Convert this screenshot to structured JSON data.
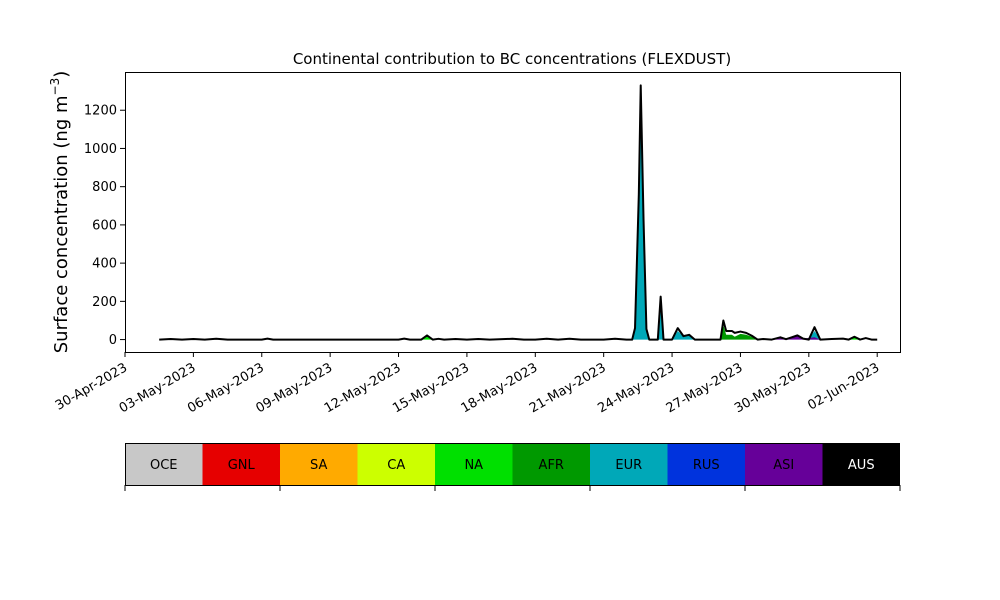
{
  "chart_data": {
    "type": "area",
    "title": "Continental contribution to BC concentrations (FLEXDUST)",
    "xlabel": "",
    "ylabel": "Surface concentration (ng m",
    "ylabel_sup": "−3",
    "ylabel_close": ")",
    "xlim": [
      "2023-04-30",
      "2023-06-03"
    ],
    "ylim": [
      -65,
      1400
    ],
    "y_ticks": [
      0,
      200,
      400,
      600,
      800,
      1000,
      1200
    ],
    "x_ticks": [
      {
        "date": "2023-04-30",
        "label": "30-Apr-2023"
      },
      {
        "date": "2023-05-03",
        "label": "03-May-2023"
      },
      {
        "date": "2023-05-06",
        "label": "06-May-2023"
      },
      {
        "date": "2023-05-09",
        "label": "09-May-2023"
      },
      {
        "date": "2023-05-12",
        "label": "12-May-2023"
      },
      {
        "date": "2023-05-15",
        "label": "15-May-2023"
      },
      {
        "date": "2023-05-18",
        "label": "18-May-2023"
      },
      {
        "date": "2023-05-21",
        "label": "21-May-2023"
      },
      {
        "date": "2023-05-24",
        "label": "24-May-2023"
      },
      {
        "date": "2023-05-27",
        "label": "27-May-2023"
      },
      {
        "date": "2023-05-30",
        "label": "30-May-2023"
      },
      {
        "date": "2023-06-02",
        "label": "02-Jun-2023"
      }
    ],
    "grid": false,
    "legend_position": "below",
    "legend": [
      {
        "name": "OCE",
        "color": "#c8c8c8",
        "text_color": "#000000"
      },
      {
        "name": "GNL",
        "color": "#e60000",
        "text_color": "#000000"
      },
      {
        "name": "SA",
        "color": "#ffaa00",
        "text_color": "#000000"
      },
      {
        "name": "CA",
        "color": "#ccff00",
        "text_color": "#000000"
      },
      {
        "name": "NA",
        "color": "#00e000",
        "text_color": "#000000"
      },
      {
        "name": "AFR",
        "color": "#009900",
        "text_color": "#000000"
      },
      {
        "name": "EUR",
        "color": "#00a8b8",
        "text_color": "#000000"
      },
      {
        "name": "RUS",
        "color": "#0033dd",
        "text_color": "#000000"
      },
      {
        "name": "ASI",
        "color": "#660099",
        "text_color": "#000000"
      },
      {
        "name": "AUS",
        "color": "#000000",
        "text_color": "#ffffff"
      }
    ],
    "series": [
      {
        "name": "EUR",
        "color": "#00a8b8",
        "points": [
          [
            "2023-05-01",
            0
          ],
          [
            "2023-05-22 06:00",
            0
          ],
          [
            "2023-05-22 09:00",
            60
          ],
          [
            "2023-05-22 13:00",
            750
          ],
          [
            "2023-05-22 15:00",
            1290
          ],
          [
            "2023-05-22 18:00",
            600
          ],
          [
            "2023-05-22 21:00",
            50
          ],
          [
            "2023-05-23 00:00",
            0
          ],
          [
            "2023-05-23 09:00",
            0
          ],
          [
            "2023-05-23 12:00",
            200
          ],
          [
            "2023-05-23 15:00",
            0
          ],
          [
            "2023-05-24 00:00",
            0
          ],
          [
            "2023-05-24 06:00",
            45
          ],
          [
            "2023-05-24 12:00",
            15
          ],
          [
            "2023-05-24 18:00",
            20
          ],
          [
            "2023-05-25 00:00",
            0
          ],
          [
            "2023-05-30 00:00",
            0
          ],
          [
            "2023-05-30 06:00",
            45
          ],
          [
            "2023-05-30 12:00",
            0
          ],
          [
            "2023-06-02",
            0
          ]
        ]
      },
      {
        "name": "AFR",
        "color": "#009900",
        "points": [
          [
            "2023-05-01",
            0
          ],
          [
            "2023-05-26 03:00",
            0
          ],
          [
            "2023-05-26 06:00",
            75
          ],
          [
            "2023-05-26 09:00",
            25
          ],
          [
            "2023-05-26 15:00",
            25
          ],
          [
            "2023-05-26 18:00",
            15
          ],
          [
            "2023-05-27 00:00",
            30
          ],
          [
            "2023-05-27 06:00",
            25
          ],
          [
            "2023-05-27 12:00",
            15
          ],
          [
            "2023-05-27 18:00",
            0
          ],
          [
            "2023-06-02",
            0
          ]
        ]
      },
      {
        "name": "ASI",
        "color": "#660099",
        "points": [
          [
            "2023-05-01",
            0
          ],
          [
            "2023-05-28 09:00",
            0
          ],
          [
            "2023-05-28 18:00",
            8
          ],
          [
            "2023-05-29 00:00",
            0
          ],
          [
            "2023-05-29 06:00",
            12
          ],
          [
            "2023-05-29 12:00",
            20
          ],
          [
            "2023-05-29 18:00",
            5
          ],
          [
            "2023-05-30 06:00",
            12
          ],
          [
            "2023-05-30 12:00",
            0
          ],
          [
            "2023-06-02",
            0
          ]
        ]
      },
      {
        "name": "NA",
        "color": "#00e000",
        "points": [
          [
            "2023-05-01",
            0
          ],
          [
            "2023-05-13 00:00",
            0
          ],
          [
            "2023-05-13 06:00",
            20
          ],
          [
            "2023-05-13 12:00",
            0
          ],
          [
            "2023-05-31 18:00",
            0
          ],
          [
            "2023-06-01 00:00",
            12
          ],
          [
            "2023-06-01 06:00",
            0
          ],
          [
            "2023-06-02",
            0
          ]
        ]
      }
    ],
    "total": [
      [
        "2023-05-01 12:00",
        0
      ],
      [
        "2023-05-02 00:00",
        3
      ],
      [
        "2023-05-02 12:00",
        0
      ],
      [
        "2023-05-03 00:00",
        3
      ],
      [
        "2023-05-03 12:00",
        0
      ],
      [
        "2023-05-04 00:00",
        4
      ],
      [
        "2023-05-04 12:00",
        0
      ],
      [
        "2023-05-06 00:00",
        0
      ],
      [
        "2023-05-06 06:00",
        5
      ],
      [
        "2023-05-06 12:00",
        0
      ],
      [
        "2023-05-12 00:00",
        0
      ],
      [
        "2023-05-12 06:00",
        5
      ],
      [
        "2023-05-12 12:00",
        0
      ],
      [
        "2023-05-13 00:00",
        0
      ],
      [
        "2023-05-13 06:00",
        22
      ],
      [
        "2023-05-13 12:00",
        0
      ],
      [
        "2023-05-13 18:00",
        4
      ],
      [
        "2023-05-14 00:00",
        0
      ],
      [
        "2023-05-14 12:00",
        3
      ],
      [
        "2023-05-15 00:00",
        0
      ],
      [
        "2023-05-15 12:00",
        3
      ],
      [
        "2023-05-16 00:00",
        0
      ],
      [
        "2023-05-17 00:00",
        4
      ],
      [
        "2023-05-17 12:00",
        0
      ],
      [
        "2023-05-18 00:00",
        0
      ],
      [
        "2023-05-18 12:00",
        4
      ],
      [
        "2023-05-19 00:00",
        0
      ],
      [
        "2023-05-19 12:00",
        4
      ],
      [
        "2023-05-20 00:00",
        0
      ],
      [
        "2023-05-21 00:00",
        0
      ],
      [
        "2023-05-21 12:00",
        4
      ],
      [
        "2023-05-22 00:00",
        0
      ],
      [
        "2023-05-22 06:00",
        0
      ],
      [
        "2023-05-22 09:00",
        60
      ],
      [
        "2023-05-22 13:00",
        760
      ],
      [
        "2023-05-22 15:00",
        1330
      ],
      [
        "2023-05-22 18:00",
        620
      ],
      [
        "2023-05-22 21:00",
        55
      ],
      [
        "2023-05-23 00:00",
        0
      ],
      [
        "2023-05-23 09:00",
        0
      ],
      [
        "2023-05-23 12:00",
        225
      ],
      [
        "2023-05-23 15:00",
        0
      ],
      [
        "2023-05-24 00:00",
        0
      ],
      [
        "2023-05-24 06:00",
        60
      ],
      [
        "2023-05-24 12:00",
        18
      ],
      [
        "2023-05-24 18:00",
        25
      ],
      [
        "2023-05-25 00:00",
        0
      ],
      [
        "2023-05-25 12:00",
        0
      ],
      [
        "2023-05-26 03:00",
        0
      ],
      [
        "2023-05-26 06:00",
        100
      ],
      [
        "2023-05-26 09:00",
        45
      ],
      [
        "2023-05-26 15:00",
        45
      ],
      [
        "2023-05-26 18:00",
        35
      ],
      [
        "2023-05-27 00:00",
        42
      ],
      [
        "2023-05-27 06:00",
        35
      ],
      [
        "2023-05-27 12:00",
        20
      ],
      [
        "2023-05-27 18:00",
        0
      ],
      [
        "2023-05-28 00:00",
        3
      ],
      [
        "2023-05-28 09:00",
        0
      ],
      [
        "2023-05-28 18:00",
        12
      ],
      [
        "2023-05-29 00:00",
        2
      ],
      [
        "2023-05-29 06:00",
        12
      ],
      [
        "2023-05-29 12:00",
        22
      ],
      [
        "2023-05-29 18:00",
        5
      ],
      [
        "2023-05-30 00:00",
        0
      ],
      [
        "2023-05-30 06:00",
        65
      ],
      [
        "2023-05-30 12:00",
        0
      ],
      [
        "2023-05-31 00:00",
        3
      ],
      [
        "2023-05-31 12:00",
        5
      ],
      [
        "2023-05-31 18:00",
        0
      ],
      [
        "2023-06-01 00:00",
        15
      ],
      [
        "2023-06-01 06:00",
        0
      ],
      [
        "2023-06-01 12:00",
        8
      ],
      [
        "2023-06-01 18:00",
        0
      ],
      [
        "2023-06-02 00:00",
        0
      ]
    ]
  }
}
